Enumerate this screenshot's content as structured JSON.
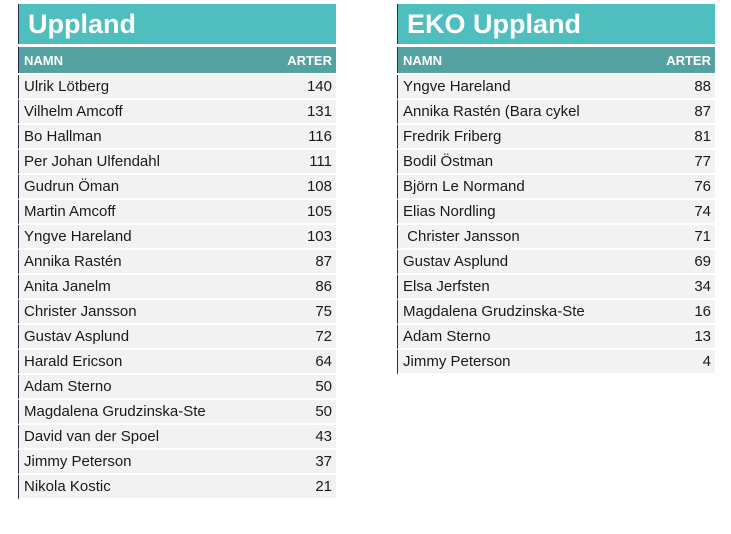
{
  "colors": {
    "title_bg": "#4fbebe",
    "header_bg": "#54a1a1",
    "row_bg": "#f2f2f2",
    "left_border": "#2b2b52",
    "header_text": "#ffffff",
    "row_text": "#1a1a1a",
    "page_bg": "#ffffff"
  },
  "tables": [
    {
      "title": "Uppland",
      "columns": {
        "name": "NAMN",
        "count": "ARTER"
      },
      "rows": [
        {
          "name": "Ulrik Lötberg",
          "arter": "140"
        },
        {
          "name": "Vilhelm Amcoff",
          "arter": "131"
        },
        {
          "name": "Bo Hallman",
          "arter": "116"
        },
        {
          "name": "Per Johan Ulfendahl",
          "arter": "111"
        },
        {
          "name": "Gudrun Öman",
          "arter": "108"
        },
        {
          "name": "Martin Amcoff",
          "arter": "105"
        },
        {
          "name": "Yngve Hareland",
          "arter": "103"
        },
        {
          "name": "Annika Rastén",
          "arter": "87"
        },
        {
          "name": "Anita Janelm",
          "arter": "86"
        },
        {
          "name": "Christer Jansson",
          "arter": "75"
        },
        {
          "name": "Gustav Asplund",
          "arter": "72"
        },
        {
          "name": "Harald Ericson",
          "arter": "64"
        },
        {
          "name": "Adam Sterno",
          "arter": "50"
        },
        {
          "name": "Magdalena Grudzinska-Ste",
          "arter": "50"
        },
        {
          "name": "David van der Spoel",
          "arter": "43"
        },
        {
          "name": "Jimmy Peterson",
          "arter": "37"
        },
        {
          "name": "Nikola Kostic",
          "arter": "21"
        }
      ]
    },
    {
      "title": "EKO Uppland",
      "columns": {
        "name": "NAMN",
        "count": "ARTER"
      },
      "rows": [
        {
          "name": "Yngve Hareland",
          "arter": "88"
        },
        {
          "name": "Annika Rastén (Bara cykel",
          "arter": "87"
        },
        {
          "name": "Fredrik Friberg",
          "arter": "81"
        },
        {
          "name": "Bodil Östman",
          "arter": "77"
        },
        {
          "name": "Björn Le Normand",
          "arter": "76"
        },
        {
          "name": "Elias Nordling",
          "arter": "74"
        },
        {
          "name": " Christer Jansson",
          "arter": "71"
        },
        {
          "name": "Gustav Asplund",
          "arter": "69"
        },
        {
          "name": "Elsa Jerfsten",
          "arter": "34"
        },
        {
          "name": "Magdalena Grudzinska-Ste",
          "arter": "16"
        },
        {
          "name": "Adam Sterno",
          "arter": "13"
        },
        {
          "name": "Jimmy Peterson",
          "arter": "4"
        }
      ]
    }
  ]
}
